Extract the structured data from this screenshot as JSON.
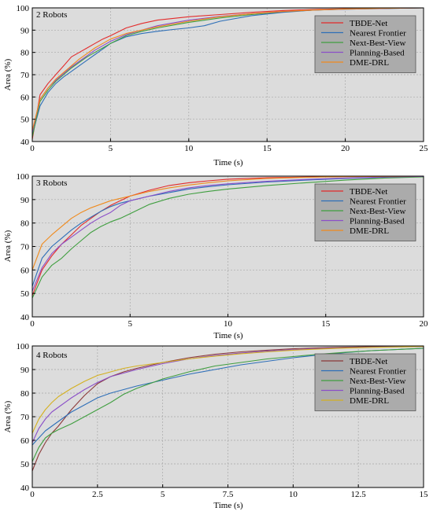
{
  "chart_data": [
    {
      "type": "line",
      "panel_label": "2 Robots",
      "xlabel": "Time (s)",
      "ylabel": "Area (%)",
      "xlim": [
        0,
        25
      ],
      "ylim": [
        40,
        100
      ],
      "xticks": [
        0,
        5,
        10,
        15,
        20,
        25
      ],
      "xtick_labels": [
        "0",
        "5",
        "10",
        "15",
        "20",
        "25"
      ],
      "yticks": [
        40,
        50,
        60,
        70,
        80,
        90,
        100
      ],
      "ytick_labels": [
        "40",
        "50",
        "60",
        "70",
        "80",
        "90",
        "100"
      ],
      "grid": true,
      "legend_position": "top-right",
      "series": [
        {
          "name": "TBDE-Net",
          "color": "#e32b2b",
          "x": [
            0,
            0.5,
            1,
            1.5,
            2,
            2.5,
            3,
            3.5,
            4,
            4.5,
            5,
            6,
            7,
            8,
            10,
            12,
            14,
            16,
            18,
            20,
            22.5,
            25
          ],
          "y": [
            41,
            61,
            66,
            70,
            74,
            78,
            80,
            82,
            84,
            86,
            87.5,
            91,
            93,
            94.5,
            96,
            97,
            98,
            98.8,
            99.3,
            99.6,
            99.8,
            100
          ]
        },
        {
          "name": "Nearest Frontier",
          "color": "#2e6fb8",
          "x": [
            0,
            0.5,
            1,
            1.5,
            2,
            2.5,
            3,
            3.5,
            4,
            4.5,
            5,
            6,
            7,
            8,
            9,
            10,
            11,
            12,
            14,
            16,
            18,
            20,
            22.5,
            25
          ],
          "y": [
            43,
            56,
            62,
            66,
            69,
            71.5,
            74,
            76.5,
            79,
            81.5,
            84,
            87,
            88.5,
            89.5,
            90.3,
            91,
            92,
            94,
            96.5,
            98,
            99,
            99.5,
            99.8,
            100
          ]
        },
        {
          "name": "Next-Best-View",
          "color": "#3f9e3f",
          "x": [
            0,
            0.5,
            1,
            1.5,
            2,
            2.5,
            3,
            3.5,
            4,
            4.5,
            5,
            6,
            7,
            8,
            10,
            12,
            14,
            16,
            18,
            20,
            22.5,
            25
          ],
          "y": [
            42,
            58,
            63,
            67,
            70,
            73,
            75.5,
            78,
            80,
            82,
            84,
            87.5,
            89.5,
            91,
            93.5,
            95.5,
            97,
            98.2,
            99,
            99.4,
            99.7,
            100
          ]
        },
        {
          "name": "Planning-Based",
          "color": "#8b4fc8",
          "x": [
            0,
            0.5,
            1,
            1.5,
            2,
            2.5,
            3,
            3.5,
            4,
            4.5,
            5,
            6,
            7,
            8,
            10,
            12,
            14,
            16,
            18,
            20,
            22.5,
            25
          ],
          "y": [
            44,
            59,
            64,
            67.5,
            70.5,
            73.5,
            76,
            78.5,
            81,
            83,
            85,
            88,
            90,
            92,
            94.5,
            96.2,
            97.4,
            98.3,
            99,
            99.4,
            99.7,
            100
          ]
        },
        {
          "name": "DME-DRL",
          "color": "#f08a1c",
          "x": [
            0,
            0.5,
            1,
            1.5,
            2,
            2.5,
            3,
            3.5,
            4,
            4.5,
            5,
            6,
            7,
            8,
            10,
            12,
            14,
            16,
            18,
            20,
            22.5,
            25
          ],
          "y": [
            45,
            59,
            64,
            68,
            71,
            74,
            77,
            79.5,
            82,
            84,
            86,
            88.5,
            90,
            91.5,
            94,
            96,
            97.4,
            98.4,
            99,
            99.5,
            99.8,
            100
          ]
        }
      ]
    },
    {
      "type": "line",
      "panel_label": "3 Robots",
      "xlabel": "Time (s)",
      "ylabel": "Area (%)",
      "xlim": [
        0,
        20
      ],
      "ylim": [
        40,
        100
      ],
      "xticks": [
        0,
        5,
        10,
        15,
        20
      ],
      "xtick_labels": [
        "0",
        "5",
        "10",
        "15",
        "20"
      ],
      "yticks": [
        40,
        50,
        60,
        70,
        80,
        90,
        100
      ],
      "ytick_labels": [
        "40",
        "50",
        "60",
        "70",
        "80",
        "90",
        "100"
      ],
      "grid": true,
      "legend_position": "top-right",
      "series": [
        {
          "name": "TBDE-Net",
          "color": "#e32b2b",
          "x": [
            0,
            0.5,
            1,
            1.5,
            2,
            2.5,
            3,
            3.5,
            4,
            4.5,
            5,
            6,
            7,
            8,
            9,
            10,
            12,
            14,
            16,
            18,
            20
          ],
          "y": [
            49,
            60,
            66,
            71,
            75,
            79,
            82,
            85,
            87.5,
            89.5,
            91.5,
            94,
            96,
            97.2,
            98,
            98.7,
            99.3,
            99.6,
            99.8,
            99.9,
            100
          ]
        },
        {
          "name": "Nearest Frontier",
          "color": "#2e6fb8",
          "x": [
            0,
            0.5,
            1,
            1.5,
            2,
            2.5,
            3,
            3.5,
            4,
            4.5,
            5,
            6,
            7,
            8,
            9,
            10,
            12,
            14,
            16,
            18,
            20
          ],
          "y": [
            53,
            65,
            70,
            73.5,
            77,
            80,
            82.5,
            85,
            87,
            88.5,
            89.5,
            91.5,
            93,
            94.5,
            95.5,
            96.3,
            97.5,
            98.3,
            99,
            99.5,
            100
          ]
        },
        {
          "name": "Next-Best-View",
          "color": "#3f9e3f",
          "x": [
            0,
            0.5,
            1,
            1.5,
            2,
            2.5,
            3,
            3.5,
            4,
            4.5,
            5,
            6,
            7,
            8,
            9,
            10,
            12,
            14,
            16,
            18,
            20
          ],
          "y": [
            48,
            57,
            62,
            65,
            69,
            72.5,
            76,
            78.5,
            80.5,
            82,
            84,
            88,
            90.5,
            92.3,
            93.5,
            94.5,
            96,
            97.2,
            98.3,
            99.2,
            99.7
          ]
        },
        {
          "name": "Planning-Based",
          "color": "#8b4fc8",
          "x": [
            0,
            0.5,
            1,
            1.5,
            2,
            2.5,
            3,
            3.5,
            4,
            4.5,
            5,
            6,
            7,
            8,
            9,
            10,
            12,
            14,
            16,
            18,
            20
          ],
          "y": [
            51,
            61,
            67,
            71,
            74,
            77,
            80,
            82.5,
            84.5,
            87.5,
            89.5,
            91.5,
            93.5,
            95,
            96,
            96.7,
            97.8,
            98.6,
            99.2,
            99.6,
            99.9
          ]
        },
        {
          "name": "DME-DRL",
          "color": "#f08a1c",
          "x": [
            0,
            0.5,
            1,
            1.5,
            2,
            2.5,
            3,
            3.5,
            4,
            4.5,
            5,
            6,
            7,
            8,
            9,
            10,
            12,
            14,
            16,
            18,
            20
          ],
          "y": [
            60,
            71,
            75,
            78.5,
            82,
            84.5,
            86.5,
            88,
            89.5,
            90.5,
            91.5,
            93.5,
            95,
            96.2,
            97.2,
            98,
            99,
            99.5,
            99.8,
            99.9,
            100
          ]
        }
      ]
    },
    {
      "type": "line",
      "panel_label": "4 Robots",
      "xlabel": "Time (s)",
      "ylabel": "Area (%)",
      "xlim": [
        0,
        15
      ],
      "ylim": [
        40,
        100
      ],
      "xticks": [
        0,
        2.5,
        5,
        7.5,
        10,
        12.5,
        15
      ],
      "xtick_labels": [
        "0",
        "2.5",
        "5",
        "7.5",
        "10",
        "12.5",
        "15"
      ],
      "yticks": [
        40,
        50,
        60,
        70,
        80,
        90,
        100
      ],
      "ytick_labels": [
        "40",
        "50",
        "60",
        "70",
        "80",
        "90",
        "100"
      ],
      "grid": true,
      "legend_position": "top-right",
      "series": [
        {
          "name": "TBDE-Net",
          "color": "#8b3a3a",
          "x": [
            0,
            0.25,
            0.5,
            0.75,
            1,
            1.5,
            2,
            2.5,
            3,
            3.5,
            4,
            5,
            6,
            7,
            8,
            9,
            10,
            11,
            12,
            13,
            14,
            15
          ],
          "y": [
            47,
            54,
            59,
            63,
            66,
            73,
            79,
            84,
            87,
            89,
            90.5,
            93,
            95,
            96.5,
            97.5,
            98.2,
            98.8,
            99.2,
            99.5,
            99.7,
            99.9,
            100
          ]
        },
        {
          "name": "Nearest Frontier",
          "color": "#2e6fb8",
          "x": [
            0,
            0.25,
            0.5,
            0.75,
            1,
            1.5,
            2,
            2.5,
            3,
            3.5,
            4,
            5,
            6,
            7,
            8,
            9,
            10,
            11,
            12,
            13,
            14,
            15
          ],
          "y": [
            58,
            61,
            64,
            66,
            68,
            72,
            75,
            78,
            80,
            81.5,
            83,
            85.5,
            88,
            90,
            92,
            93.5,
            95,
            96.2,
            97.2,
            98,
            98.5,
            99
          ]
        },
        {
          "name": "Next-Best-View",
          "color": "#3f9e3f",
          "x": [
            0,
            0.25,
            0.5,
            0.75,
            1,
            1.5,
            2,
            2.5,
            3,
            3.5,
            4,
            5,
            6,
            7,
            8,
            9,
            10,
            11,
            12,
            13,
            14,
            15
          ],
          "y": [
            51,
            57,
            61,
            63,
            64.5,
            67,
            70,
            73,
            76,
            79.5,
            82,
            86,
            89,
            91.5,
            93,
            94.5,
            95.5,
            96.5,
            97.3,
            98,
            98.5,
            99
          ]
        },
        {
          "name": "Planning-Based",
          "color": "#8b4fc8",
          "x": [
            0,
            0.25,
            0.5,
            0.75,
            1,
            1.5,
            2,
            2.5,
            3,
            3.5,
            4,
            5,
            6,
            7,
            8,
            9,
            10,
            11,
            12,
            13,
            14,
            15
          ],
          "y": [
            59,
            65,
            69,
            72,
            74,
            78,
            81.5,
            84.5,
            87,
            88.5,
            90,
            92.5,
            94.5,
            96,
            97,
            97.8,
            98.4,
            98.9,
            99.2,
            99.5,
            99.7,
            99.8
          ]
        },
        {
          "name": "DME-DRL",
          "color": "#d4b020",
          "x": [
            0,
            0.25,
            0.5,
            0.75,
            1,
            1.5,
            2,
            2.5,
            3,
            3.5,
            4,
            5,
            6,
            7,
            8,
            9,
            10,
            11,
            12,
            13,
            14,
            15
          ],
          "y": [
            63,
            69,
            73,
            76,
            78.5,
            82,
            85,
            87.5,
            89,
            90.5,
            91.5,
            93,
            94.5,
            95.7,
            96.7,
            97.5,
            98.2,
            98.7,
            99.1,
            99.4,
            99.6,
            99.8
          ]
        }
      ]
    }
  ]
}
